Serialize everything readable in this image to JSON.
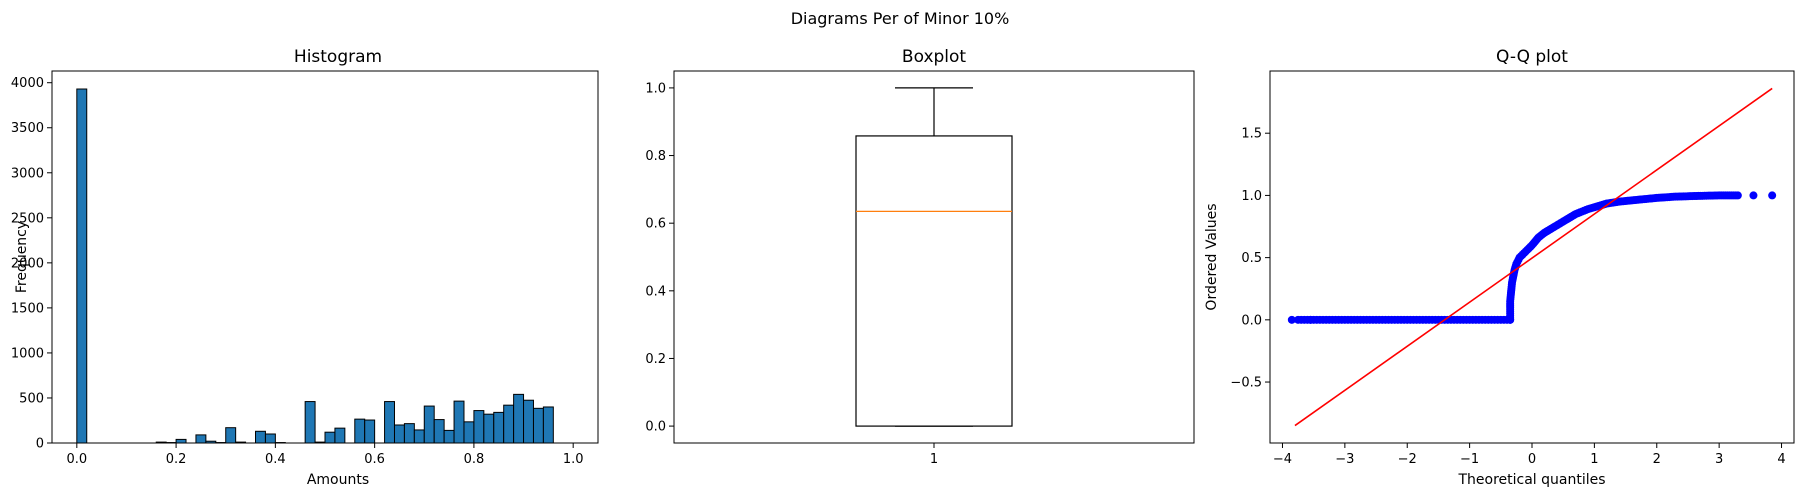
{
  "figure": {
    "suptitle": "Diagrams Per of Minor 10%"
  },
  "chart_data": [
    {
      "type": "bar",
      "title": "Histogram",
      "xlabel": "Amounts",
      "ylabel": "Frequency",
      "xlim": [
        -0.05,
        1.05
      ],
      "ylim": [
        0,
        4130
      ],
      "xticks": [
        "0.0",
        "0.2",
        "0.4",
        "0.6",
        "0.8",
        "1.0"
      ],
      "yticks": [
        "0",
        "500",
        "1000",
        "1500",
        "2000",
        "2500",
        "3000",
        "3500",
        "4000"
      ],
      "bins": 50,
      "bin_range": [
        0,
        1
      ],
      "values": [
        3930,
        0,
        0,
        0,
        0,
        0,
        0,
        0,
        10,
        5,
        40,
        0,
        90,
        20,
        5,
        170,
        10,
        0,
        130,
        100,
        5,
        0,
        0,
        460,
        10,
        120,
        165,
        0,
        265,
        255,
        0,
        460,
        200,
        215,
        145,
        410,
        260,
        140,
        465,
        235,
        360,
        320,
        340,
        420,
        540,
        475,
        385,
        400,
        0,
        0
      ],
      "color": "#1f77b4",
      "edgecolor": "#000000"
    },
    {
      "type": "box",
      "title": "Boxplot",
      "xlim": [
        0.5,
        1.5
      ],
      "ylim": [
        -0.05,
        1.05
      ],
      "xticks": [
        "1"
      ],
      "yticks": [
        "0.0",
        "0.2",
        "0.4",
        "0.6",
        "0.8",
        "1.0"
      ],
      "whisker_low": 0.0,
      "q1": 0.0,
      "median": 0.635,
      "q3": 0.858,
      "whisker_high": 1.0,
      "median_color": "#ff7f0e"
    },
    {
      "type": "scatter",
      "title": "Q-Q plot",
      "xlabel": "Theoretical quantiles",
      "ylabel": "Ordered Values",
      "xlim": [
        -4.2,
        4.2
      ],
      "ylim": [
        -0.99,
        2.0
      ],
      "xticks": [
        "−4",
        "−3",
        "−2",
        "−1",
        "0",
        "1",
        "2",
        "3",
        "4"
      ],
      "yticks": [
        "−0.5",
        "0.0",
        "0.5",
        "1.0",
        "1.5"
      ],
      "point_color": "#0000ff",
      "line_color": "#ff0000",
      "fit_line": [
        [
          -3.8,
          -0.85
        ],
        [
          3.85,
          1.86
        ]
      ],
      "zero_segment_x": [
        -3.75,
        -0.35
      ],
      "isolated_points": [
        [
          -3.85,
          0.0
        ],
        [
          -3.55,
          0.0
        ],
        [
          3.55,
          1.0
        ],
        [
          3.85,
          1.0
        ]
      ],
      "curve_points": [
        [
          -0.35,
          0.0
        ],
        [
          -0.35,
          0.15
        ],
        [
          -0.34,
          0.2
        ],
        [
          -0.32,
          0.3
        ],
        [
          -0.3,
          0.35
        ],
        [
          -0.28,
          0.4
        ],
        [
          -0.25,
          0.45
        ],
        [
          -0.2,
          0.5
        ],
        [
          -0.1,
          0.55
        ],
        [
          0.0,
          0.6
        ],
        [
          0.1,
          0.66
        ],
        [
          0.2,
          0.7
        ],
        [
          0.3,
          0.73
        ],
        [
          0.4,
          0.76
        ],
        [
          0.5,
          0.79
        ],
        [
          0.6,
          0.82
        ],
        [
          0.7,
          0.85
        ],
        [
          0.8,
          0.87
        ],
        [
          0.9,
          0.89
        ],
        [
          1.0,
          0.905
        ],
        [
          1.1,
          0.92
        ],
        [
          1.2,
          0.935
        ],
        [
          1.4,
          0.95
        ],
        [
          1.6,
          0.96
        ],
        [
          1.8,
          0.97
        ],
        [
          2.0,
          0.98
        ],
        [
          2.3,
          0.99
        ],
        [
          2.6,
          0.995
        ],
        [
          3.0,
          1.0
        ],
        [
          3.3,
          1.0
        ]
      ]
    }
  ]
}
